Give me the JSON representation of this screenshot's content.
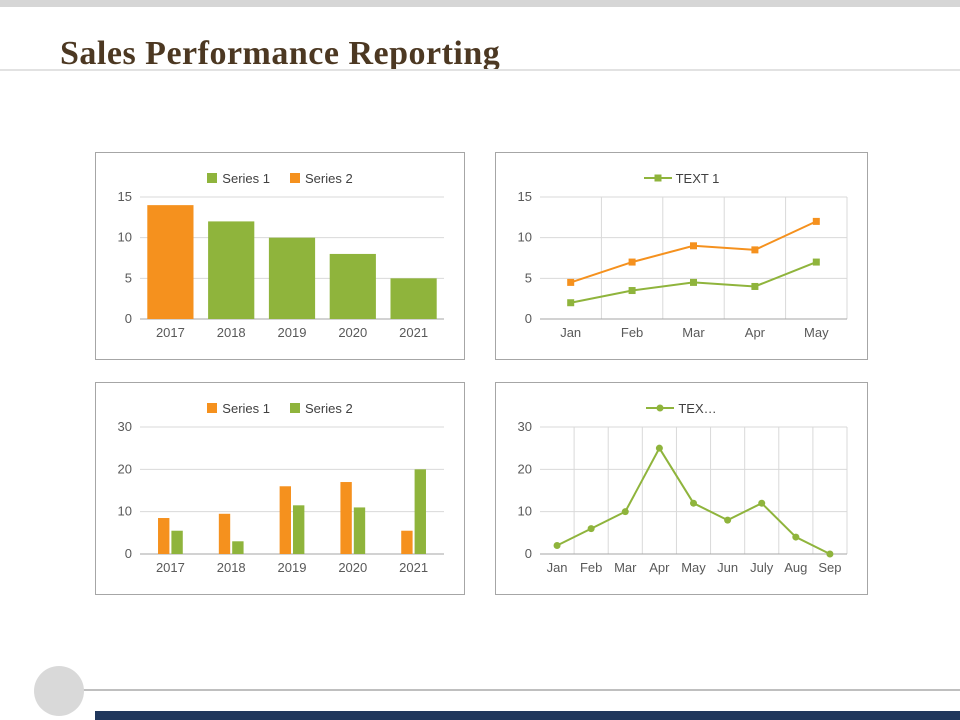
{
  "slide": {
    "title": "Sales Performance Reporting"
  },
  "colors": {
    "orange": "#F5911E",
    "green": "#8FB43C",
    "navy": "#20375C",
    "title_brown": "#4C3822"
  },
  "chart_data": [
    {
      "id": "yearly-single-bar",
      "type": "bar",
      "categories": [
        "2017",
        "2018",
        "2019",
        "2020",
        "2021"
      ],
      "series": [
        {
          "name": "values",
          "values": [
            14,
            12,
            10,
            8,
            5
          ],
          "colors": [
            "#F5911E",
            "#8FB43C",
            "#8FB43C",
            "#8FB43C",
            "#8FB43C"
          ]
        }
      ],
      "legend": [
        {
          "label": "Series 1",
          "color": "#8FB43C",
          "marker": "square"
        },
        {
          "label": "Series 2",
          "color": "#F5911E",
          "marker": "square"
        }
      ],
      "ylim": [
        0,
        15
      ],
      "yticks": [
        0,
        5,
        10,
        15
      ],
      "grid": "h",
      "marker": "none"
    },
    {
      "id": "monthly-two-lines",
      "type": "line",
      "categories": [
        "Jan",
        "Feb",
        "Mar",
        "Apr",
        "May"
      ],
      "series": [
        {
          "name": "orange-line",
          "values": [
            4.5,
            7,
            9,
            8.5,
            12
          ],
          "color": "#F5911E"
        },
        {
          "name": "green-line",
          "values": [
            2,
            3.5,
            4.5,
            4,
            7
          ],
          "color": "#8FB43C"
        }
      ],
      "legend": [
        {
          "label": "TEXT 1",
          "color": "#8FB43C",
          "marker": "line-square"
        }
      ],
      "ylim": [
        0,
        15
      ],
      "yticks": [
        0,
        5,
        10,
        15
      ],
      "grid": "both",
      "marker": "square"
    },
    {
      "id": "yearly-grouped-bar",
      "type": "bar",
      "categories": [
        "2017",
        "2018",
        "2019",
        "2020",
        "2021"
      ],
      "series": [
        {
          "name": "Series 1",
          "values": [
            8.5,
            9.5,
            16,
            17,
            5.5
          ],
          "color": "#F5911E"
        },
        {
          "name": "Series 2",
          "values": [
            5.5,
            3,
            11.5,
            11,
            20
          ],
          "color": "#8FB43C"
        }
      ],
      "legend": [
        {
          "label": "Series 1",
          "color": "#F5911E",
          "marker": "square"
        },
        {
          "label": "Series 2",
          "color": "#8FB43C",
          "marker": "square"
        }
      ],
      "ylim": [
        0,
        30
      ],
      "yticks": [
        0,
        10,
        20,
        30
      ],
      "grid": "h",
      "marker": "none"
    },
    {
      "id": "monthly-single-line",
      "type": "line",
      "categories": [
        "Jan",
        "Feb",
        "Mar",
        "Apr",
        "May",
        "Jun",
        "July",
        "Aug",
        "Sep"
      ],
      "series": [
        {
          "name": "green-line",
          "values": [
            2,
            6,
            10,
            25,
            12,
            8,
            12,
            4,
            0
          ],
          "color": "#8FB43C"
        }
      ],
      "legend": [
        {
          "label": "TEX…",
          "color": "#8FB43C",
          "marker": "line-circle"
        }
      ],
      "ylim": [
        0,
        30
      ],
      "yticks": [
        0,
        10,
        20,
        30
      ],
      "grid": "both",
      "marker": "circle"
    }
  ]
}
